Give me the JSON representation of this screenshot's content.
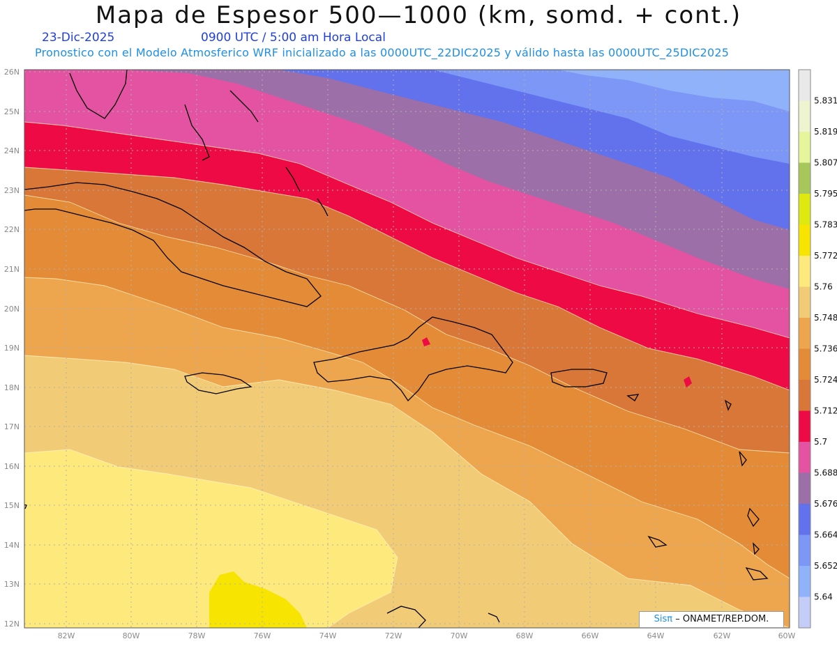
{
  "header": {
    "title": "Mapa de Espesor 500—1000 (km, somd. + cont.)",
    "date": "23-Dic-2025",
    "time": "0900 UTC / 5:00 am Hora Local",
    "description": "Pronostico con el Modelo Atmosferico WRF inicializado a las 0000UTC_22DIC2025 y válido hasta las  0000UTC_25DIC2025"
  },
  "map": {
    "lat_labels": [
      "26N",
      "25N",
      "24N",
      "23N",
      "22N",
      "21N",
      "20N",
      "19N",
      "18N",
      "17N",
      "16N",
      "15N",
      "14N",
      "13N",
      "12N"
    ],
    "lon_labels": [
      "82W",
      "80W",
      "78W",
      "76W",
      "74W",
      "72W",
      "70W",
      "68W",
      "66W",
      "64W",
      "62W",
      "60W"
    ],
    "gridlines": true
  },
  "colorbar": {
    "levels": [
      "5.831",
      "5.819",
      "5.807",
      "5.795",
      "5.783",
      "5.772",
      "5.76",
      "5.748",
      "5.736",
      "5.724",
      "5.712",
      "5.7",
      "5.688",
      "5.676",
      "5.664",
      "5.652",
      "5.64"
    ],
    "colors": [
      "#e9e9e9",
      "#eef4cf",
      "#e4f59c",
      "#a8c75a",
      "#dde90f",
      "#f7e400",
      "#fde97c",
      "#f1cb76",
      "#eda64d",
      "#e48b37",
      "#d87738",
      "#ee0a44",
      "#e453a2",
      "#9c6fa8",
      "#6172ec",
      "#7d97f7",
      "#8fb2fa",
      "#c4ccf8"
    ]
  },
  "credit": {
    "brand": "Sisπ",
    "text": "– ONAMET/REP.DOM."
  },
  "icons": [
    "coastline-outlines"
  ]
}
